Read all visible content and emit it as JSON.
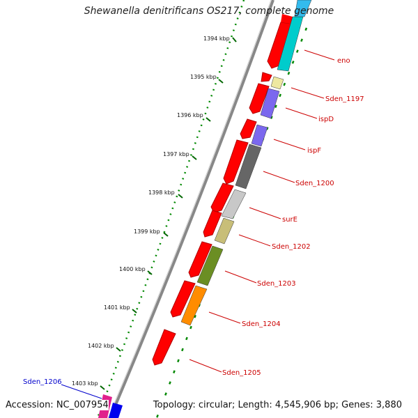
{
  "title": "Shewanella denitrificans OS217, complete genome",
  "footer": {
    "accession": "Accession: NC_007954",
    "topology": "Topology: circular; Length: 4,545,906 bp; Genes: 3,880"
  },
  "ticks": [
    "1394 kbp",
    "1395 kbp",
    "1396 kbp",
    "1397 kbp",
    "1398 kbp",
    "1399 kbp",
    "1400 kbp",
    "1401 kbp",
    "1402 kbp",
    "1403 kbp"
  ],
  "genes": [
    {
      "name": "eno",
      "color": "#00cccc"
    },
    {
      "name": "Sden_1197",
      "color": "#eee8a0"
    },
    {
      "name": "ispD",
      "color": "#7b68ee"
    },
    {
      "name": "ispF",
      "color": "#7b68ee"
    },
    {
      "name": "Sden_1200",
      "color": "#666666"
    },
    {
      "name": "surE",
      "color": "#c8c8c8"
    },
    {
      "name": "Sden_1202",
      "color": "#c8be78"
    },
    {
      "name": "Sden_1203",
      "color": "#6b8e23"
    },
    {
      "name": "Sden_1204",
      "color": "#ff8c00"
    },
    {
      "name": "Sden_1205",
      "color": "#ff0000"
    },
    {
      "name": "Sden_1206",
      "color": "#0000ff"
    }
  ],
  "colors": {
    "cds_forward": "#ff0000",
    "backbone": "#888888",
    "tick_dots": "#008800",
    "label_red": "#cc0000",
    "label_blue": "#0000cc"
  }
}
